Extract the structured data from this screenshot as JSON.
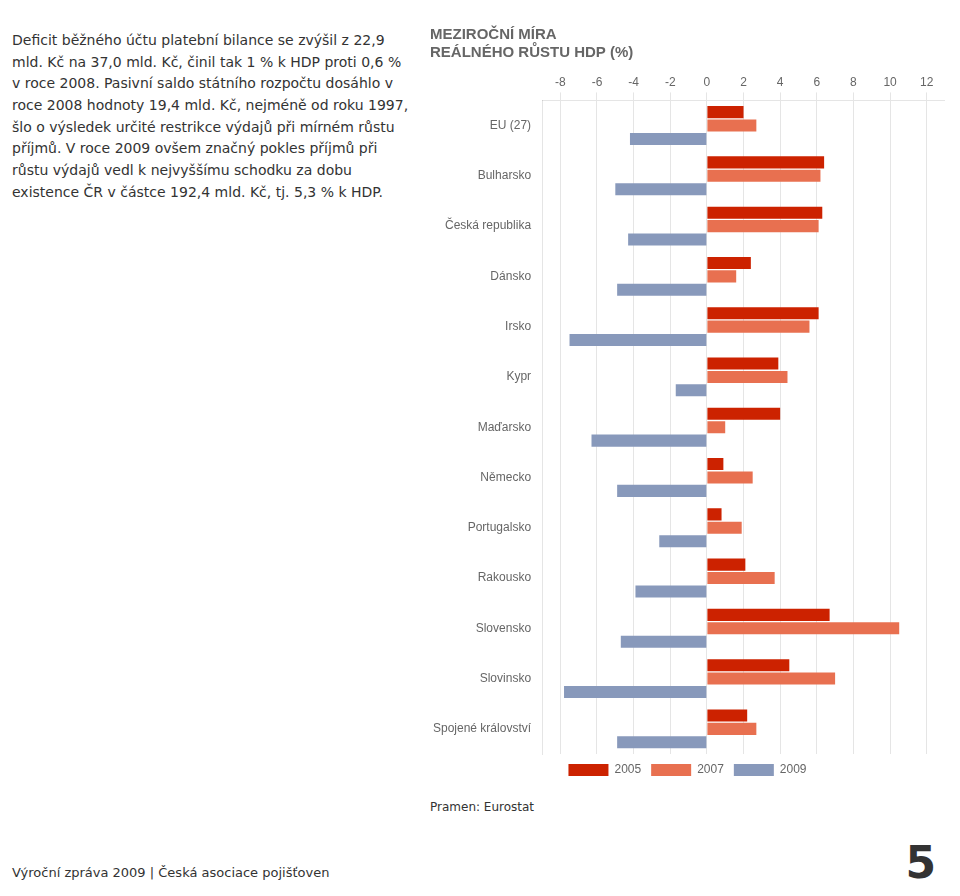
{
  "chart_data": {
    "type": "bar",
    "orientation": "horizontal",
    "title": "MEZIROČNÍ MÍRA",
    "subtitle": "REÁLNÉHO RŮSTU HDP (%)",
    "categories": [
      "EU (27)",
      "Bulharsko",
      "Česká republika",
      "Dánsko",
      "Irsko",
      "Kypr",
      "Maďarsko",
      "Německo",
      "Portugalsko",
      "Rakousko",
      "Slovensko",
      "Slovinsko",
      "Spojené království"
    ],
    "series": [
      {
        "name": "2005",
        "color": "#cc2200",
        "values": [
          2.0,
          6.4,
          6.3,
          2.4,
          6.1,
          3.9,
          4.0,
          0.9,
          0.8,
          2.1,
          6.7,
          4.5,
          2.2
        ]
      },
      {
        "name": "2007",
        "color": "#e87050",
        "values": [
          2.7,
          6.2,
          6.1,
          1.6,
          5.6,
          4.4,
          1.0,
          2.5,
          1.9,
          3.7,
          10.5,
          7.0,
          2.7
        ]
      },
      {
        "name": "2009",
        "color": "#8899bb",
        "values": [
          -4.2,
          -5.0,
          -4.3,
          -4.9,
          -7.5,
          -1.7,
          -6.3,
          -4.9,
          -2.6,
          -3.9,
          -4.7,
          -7.8,
          -4.9
        ]
      }
    ],
    "xlim": [
      -9,
      13
    ],
    "xticks": [
      -8,
      -6,
      -4,
      -2,
      0,
      2,
      4,
      6,
      8,
      10,
      12
    ],
    "grid": true,
    "legend": "bottom",
    "annotations": [
      "Deficit běžného účtu platební bilance se zvýšil z 22,9 mld. Kč na 37,0 mld. Kč, činil tak 1 % k HDP proti 0,6 % v roce 2008. Pasivní saldo státního rozpočtu dosáhlo v roce 2008 hodnoty 19,4 mld. Kč, nejméně od roku 1997, šlo o výsledek určité restrikce výdajů při mírném růstu příjmů. V roce 2009 ovšem značný pokles příjmů při růstu výdajů vedl k nejvyššímu schodku za dobu existence ČR v částce 192,4 mld. Kč, tj. 5,3 % k HDP.",
      "Pramen: Eurostat",
      "Výroční zpráva 2009 | Česká asociace pojišťoven",
      "5"
    ]
  }
}
